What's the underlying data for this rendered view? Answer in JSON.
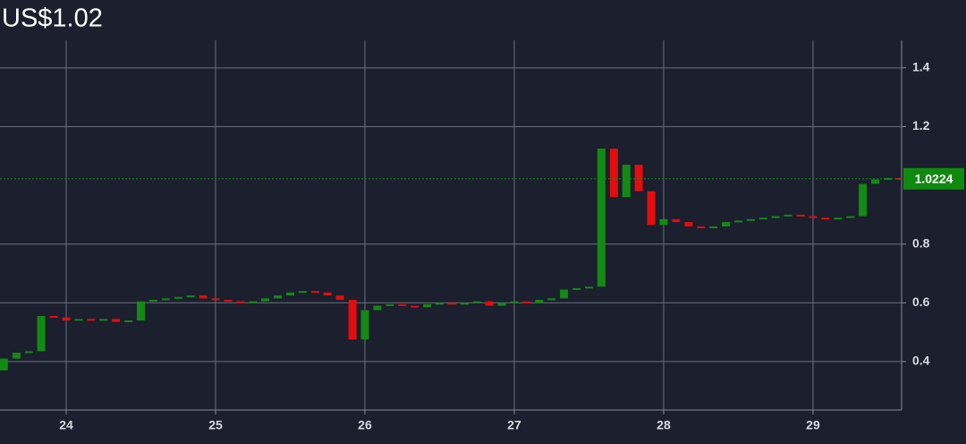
{
  "chart_data": {
    "type": "candlestick",
    "title": "US$1.02",
    "x": [
      23.583,
      23.667,
      23.75,
      23.833,
      23.917,
      24,
      24.083,
      24.167,
      24.25,
      24.333,
      24.417,
      24.5,
      24.583,
      24.667,
      24.75,
      24.833,
      24.917,
      25,
      25.083,
      25.167,
      25.25,
      25.333,
      25.417,
      25.5,
      25.583,
      25.667,
      25.75,
      25.833,
      25.917,
      26,
      26.083,
      26.167,
      26.25,
      26.333,
      26.417,
      26.5,
      26.583,
      26.667,
      26.75,
      26.833,
      26.917,
      27,
      27.083,
      27.167,
      27.25,
      27.333,
      27.417,
      27.5,
      27.583,
      27.667,
      27.75,
      27.833,
      27.917,
      28,
      28.083,
      28.167,
      28.25,
      28.333,
      28.417,
      28.5,
      28.583,
      28.667,
      28.75,
      28.833,
      28.917,
      29,
      29.083,
      29.167,
      29.25,
      29.333,
      29.417,
      29.5,
      29.583
    ],
    "open": [
      0.37,
      0.41,
      0.43,
      0.435,
      0.555,
      0.55,
      0.54,
      0.545,
      0.54,
      0.545,
      0.535,
      0.54,
      0.605,
      0.61,
      0.615,
      0.62,
      0.625,
      0.615,
      0.61,
      0.605,
      0.6,
      0.605,
      0.615,
      0.625,
      0.635,
      0.64,
      0.635,
      0.625,
      0.61,
      0.475,
      0.575,
      0.59,
      0.595,
      0.59,
      0.585,
      0.595,
      0.6,
      0.595,
      0.6,
      0.605,
      0.59,
      0.6,
      0.605,
      0.6,
      0.61,
      0.615,
      0.645,
      0.65,
      0.655,
      1.125,
      0.96,
      1.07,
      0.98,
      0.865,
      0.885,
      0.875,
      0.86,
      0.855,
      0.86,
      0.875,
      0.88,
      0.885,
      0.89,
      0.895,
      0.9,
      0.895,
      0.89,
      0.885,
      0.89,
      0.895,
      1.005,
      1.02,
      1.025
    ],
    "close": [
      0.41,
      0.43,
      0.435,
      0.555,
      0.55,
      0.54,
      0.545,
      0.54,
      0.545,
      0.535,
      0.54,
      0.605,
      0.61,
      0.615,
      0.62,
      0.625,
      0.615,
      0.61,
      0.605,
      0.6,
      0.605,
      0.615,
      0.625,
      0.635,
      0.64,
      0.635,
      0.625,
      0.61,
      0.475,
      0.575,
      0.59,
      0.595,
      0.59,
      0.585,
      0.595,
      0.6,
      0.595,
      0.6,
      0.605,
      0.59,
      0.6,
      0.605,
      0.6,
      0.61,
      0.615,
      0.645,
      0.65,
      0.655,
      1.125,
      0.96,
      1.07,
      0.98,
      0.865,
      0.885,
      0.875,
      0.86,
      0.855,
      0.86,
      0.875,
      0.88,
      0.885,
      0.89,
      0.895,
      0.9,
      0.895,
      0.89,
      0.885,
      0.89,
      0.895,
      1.005,
      1.02,
      1.025,
      1.022
    ],
    "up_color": "#138a13",
    "down_color": "#e30d0d",
    "xlim": [
      23.557,
      29.593
    ],
    "xticks": [
      24,
      25,
      26,
      27,
      28,
      29
    ],
    "ylim": [
      0.235,
      1.494
    ],
    "yticks": [
      0.4,
      0.6,
      0.8,
      1.2,
      1.4
    ],
    "grid": true,
    "last_value": 1.0224,
    "last_color": "#0f8a0f"
  }
}
